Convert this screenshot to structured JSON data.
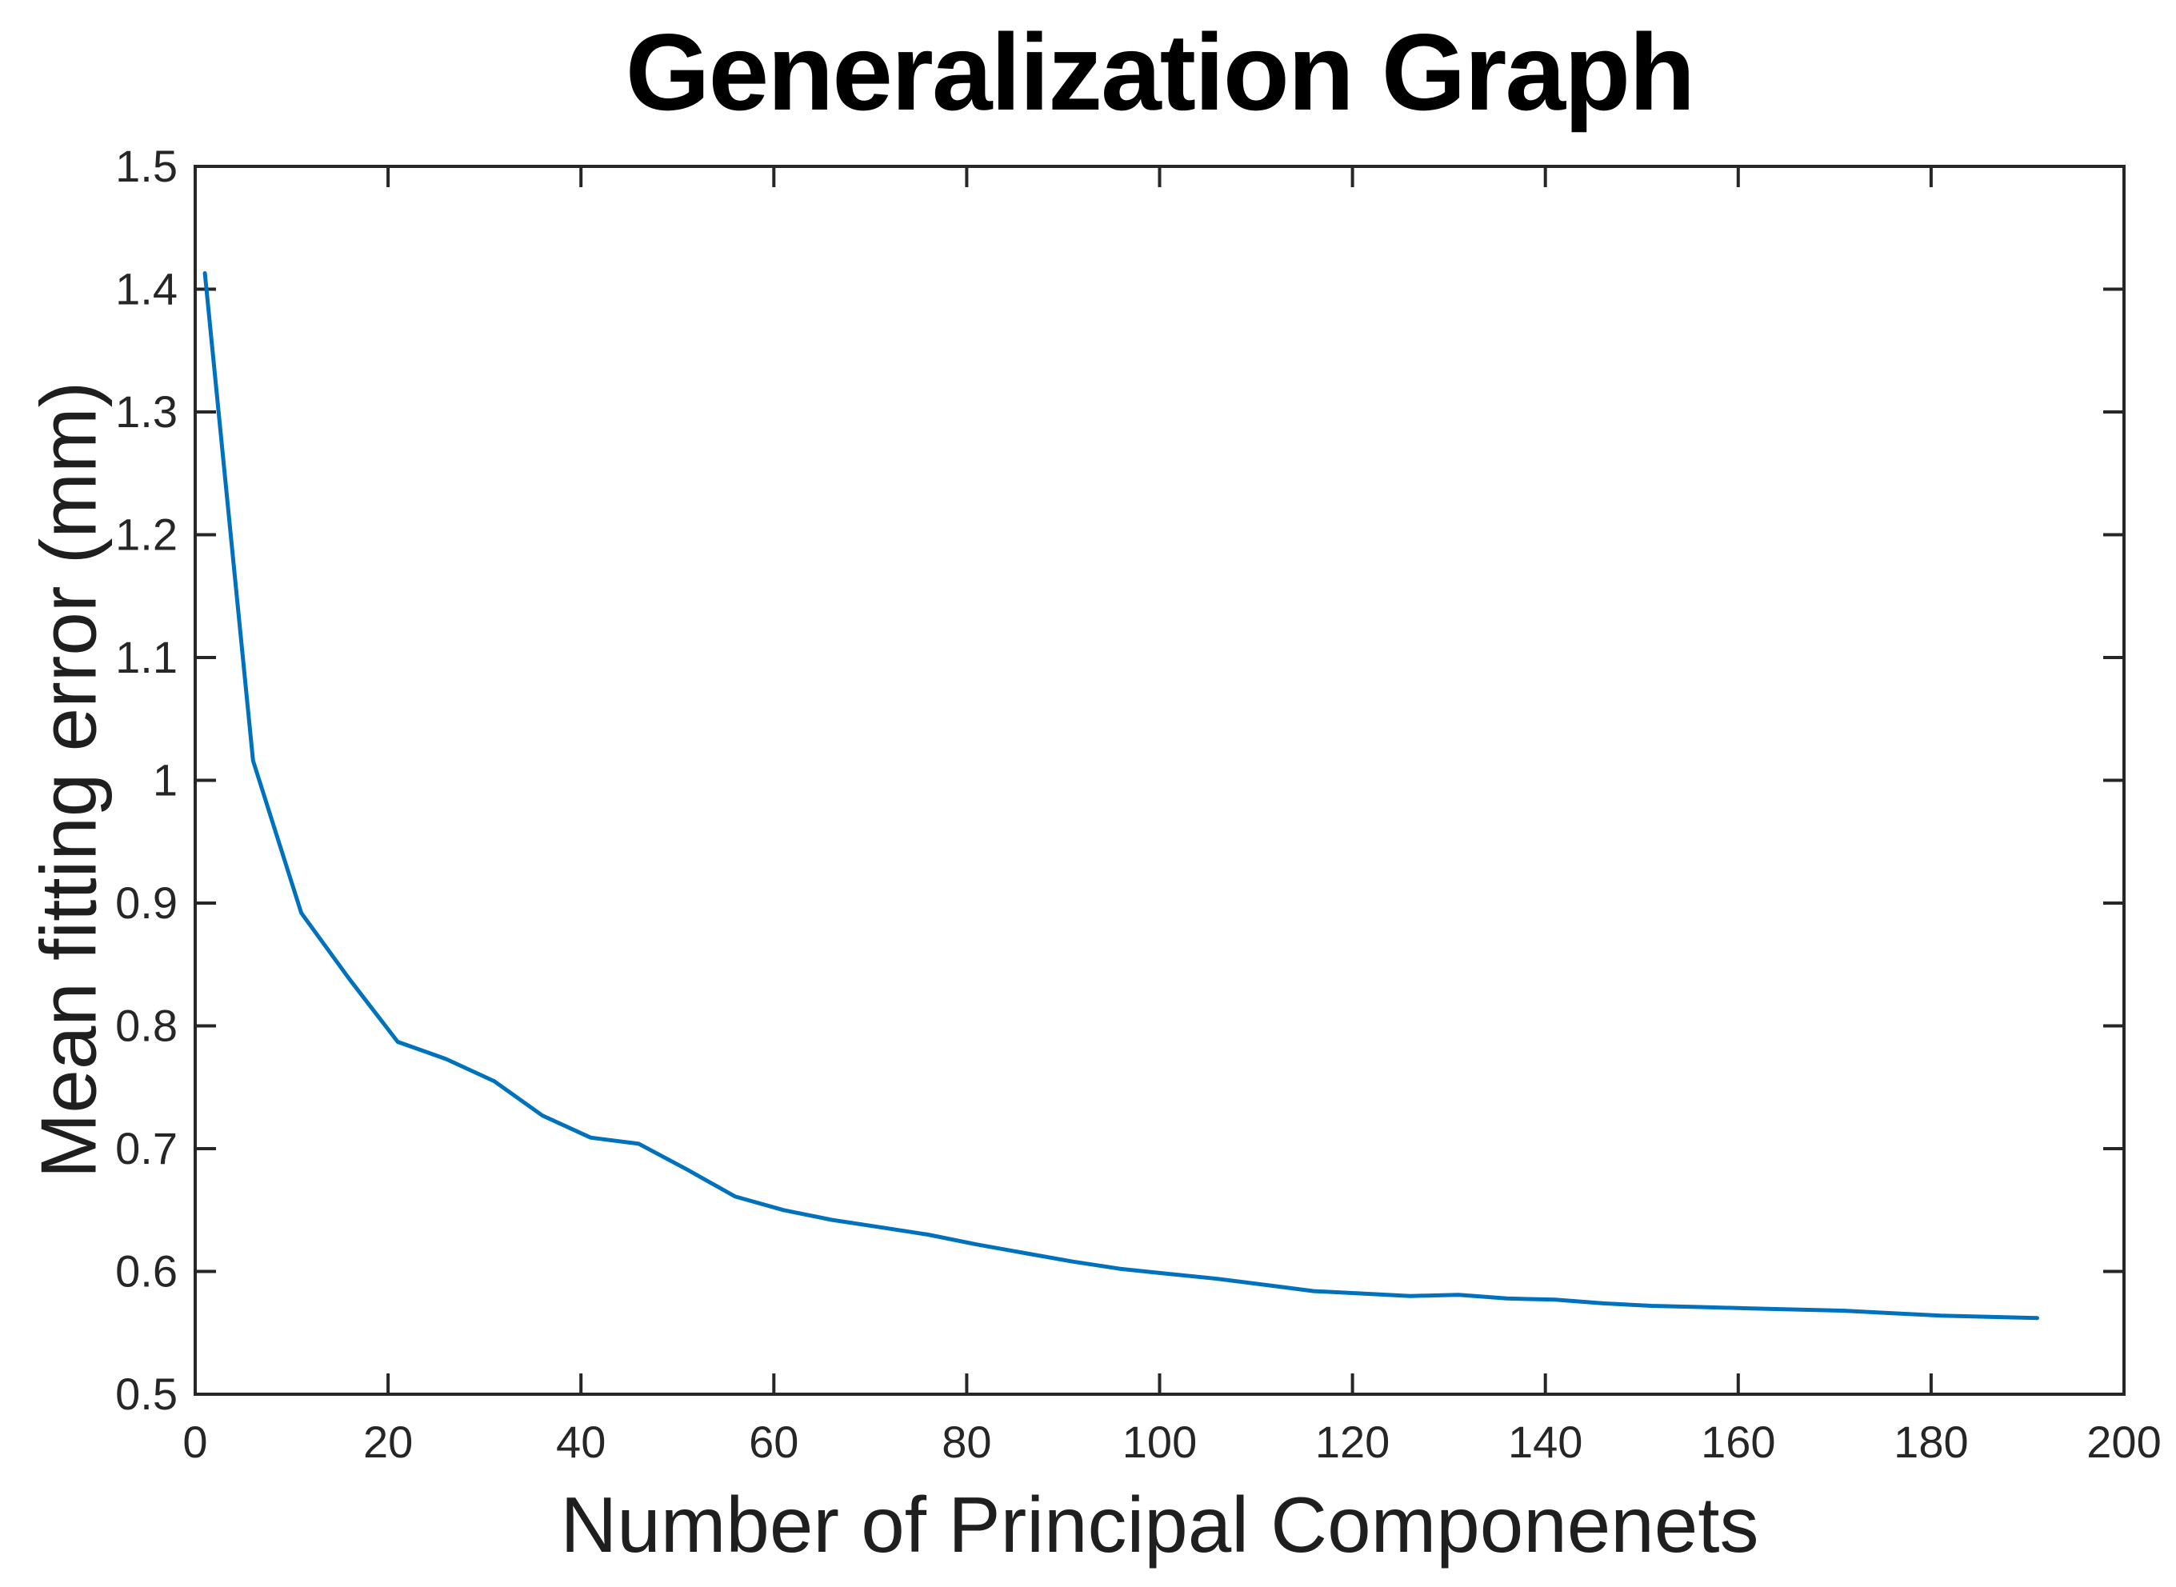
{
  "title": "Generalization Graph",
  "chart_data": {
    "type": "line",
    "title": "Generalization Graph",
    "xlabel": "Number of Principal Componenets",
    "ylabel": "Mean fitting error (mm)",
    "xlim": [
      0,
      200
    ],
    "ylim": [
      0.5,
      1.5
    ],
    "x_ticks": [
      0,
      20,
      40,
      60,
      80,
      100,
      120,
      140,
      160,
      180,
      200
    ],
    "y_ticks": [
      0.5,
      0.6,
      0.7,
      0.8,
      0.9,
      1.0,
      1.1,
      1.2,
      1.3,
      1.4,
      1.5
    ],
    "y_tick_labels": [
      "0.5",
      "0.6",
      "0.7",
      "0.8",
      "0.9",
      "1",
      "1.1",
      "1.2",
      "1.3",
      "1.4",
      "1.5"
    ],
    "grid": false,
    "legend_position": null,
    "box": true,
    "tick_direction": "in",
    "line_color": "#0072bd",
    "axis_color": "#262626",
    "background_color": "#ffffff",
    "x": [
      1,
      6,
      11,
      16,
      21,
      26,
      31,
      36,
      41,
      46,
      51,
      56,
      61,
      66,
      71,
      76,
      81,
      86,
      91,
      96,
      101,
      106,
      111,
      116,
      121,
      126,
      131,
      136,
      141,
      146,
      151,
      156,
      161,
      166,
      171,
      176,
      181,
      186,
      191
    ],
    "y": [
      1.413,
      1.016,
      0.892,
      0.838,
      0.787,
      0.773,
      0.755,
      0.727,
      0.709,
      0.704,
      0.683,
      0.661,
      0.65,
      0.642,
      0.636,
      0.63,
      0.622,
      0.615,
      0.608,
      0.602,
      0.598,
      0.594,
      0.589,
      0.584,
      0.582,
      0.58,
      0.581,
      0.578,
      0.577,
      0.574,
      0.572,
      0.571,
      0.57,
      0.569,
      0.568,
      0.566,
      0.564,
      0.563,
      0.562
    ]
  }
}
